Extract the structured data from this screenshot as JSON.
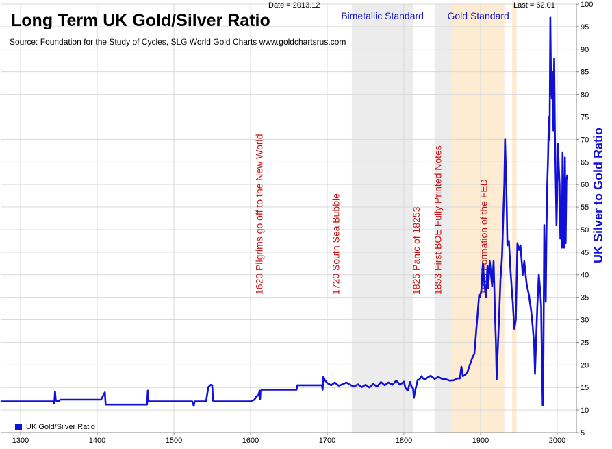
{
  "header": {
    "title": "Long Term UK Gold/Silver Ratio",
    "source": "Source: Foundation for the Study of Cycles, SLG    World Gold Charts www.goldchartsrus.com",
    "date_label": "Date = 2013.12",
    "last_label": "Last = 62.01"
  },
  "colors": {
    "line": "#1010d8",
    "annotation": "#cc1111",
    "region_gray": "#ececec",
    "region_orange": "#fdebd2",
    "grid": "#d9d9d9"
  },
  "chart_data": {
    "type": "line",
    "title": "Long Term UK Gold/Silver Ratio",
    "ylabel": "UK Silver to Gold Ratio",
    "xlabel": "",
    "xlim": [
      1275,
      2025
    ],
    "ylim": [
      5,
      100
    ],
    "x_ticks": [
      1300,
      1400,
      1500,
      1600,
      1700,
      1800,
      1900,
      2000
    ],
    "y_ticks": [
      5,
      10,
      15,
      20,
      25,
      30,
      35,
      40,
      45,
      50,
      55,
      60,
      65,
      70,
      75,
      80,
      85,
      90,
      95,
      100
    ],
    "grid": true,
    "legend_position": "bottom-left",
    "series": [
      {
        "name": "UK Gold/Silver Ratio",
        "points": [
          [
            1275,
            11.9
          ],
          [
            1343,
            11.9
          ],
          [
            1344,
            11.4
          ],
          [
            1345,
            14.1
          ],
          [
            1346,
            12.1
          ],
          [
            1349,
            11.9
          ],
          [
            1352,
            12.3
          ],
          [
            1405,
            12.3
          ],
          [
            1410,
            13.9
          ],
          [
            1411,
            11.2
          ],
          [
            1412,
            11.2
          ],
          [
            1460,
            11.2
          ],
          [
            1465,
            11.2
          ],
          [
            1466,
            14.3
          ],
          [
            1467,
            11.9
          ],
          [
            1524,
            11.9
          ],
          [
            1526,
            10.9
          ],
          [
            1527,
            11.9
          ],
          [
            1542,
            11.9
          ],
          [
            1545,
            15.1
          ],
          [
            1548,
            15.6
          ],
          [
            1550,
            15.5
          ],
          [
            1551,
            12.1
          ],
          [
            1552,
            11.9
          ],
          [
            1600,
            11.9
          ],
          [
            1605,
            12.3
          ],
          [
            1608,
            13.1
          ],
          [
            1610,
            13.2
          ],
          [
            1612,
            14.3
          ],
          [
            1612.5,
            12.4
          ],
          [
            1613,
            14.2
          ],
          [
            1615,
            14.5
          ],
          [
            1660,
            14.5
          ],
          [
            1661,
            15.5
          ],
          [
            1693,
            15.5
          ],
          [
            1694,
            14.5
          ],
          [
            1695,
            17.4
          ],
          [
            1697,
            16.6
          ],
          [
            1700,
            16.0
          ],
          [
            1705,
            15.5
          ],
          [
            1710,
            16.1
          ],
          [
            1715,
            15.4
          ],
          [
            1720,
            15.7
          ],
          [
            1725,
            16.1
          ],
          [
            1730,
            15.6
          ],
          [
            1735,
            15.2
          ],
          [
            1740,
            15.7
          ],
          [
            1745,
            15.1
          ],
          [
            1750,
            15.6
          ],
          [
            1755,
            15.0
          ],
          [
            1760,
            15.8
          ],
          [
            1765,
            15.2
          ],
          [
            1770,
            16.2
          ],
          [
            1775,
            15.5
          ],
          [
            1780,
            16.1
          ],
          [
            1785,
            15.6
          ],
          [
            1790,
            16.5
          ],
          [
            1795,
            15.6
          ],
          [
            1800,
            16.3
          ],
          [
            1802,
            14.9
          ],
          [
            1805,
            14.3
          ],
          [
            1808,
            16.2
          ],
          [
            1810,
            15.2
          ],
          [
            1812,
            14.8
          ],
          [
            1813,
            12.7
          ],
          [
            1815,
            14.5
          ],
          [
            1818,
            16.7
          ],
          [
            1820,
            16.7
          ],
          [
            1823,
            17.5
          ],
          [
            1825,
            17.0
          ],
          [
            1828,
            16.8
          ],
          [
            1830,
            17.1
          ],
          [
            1835,
            17.6
          ],
          [
            1840,
            16.9
          ],
          [
            1845,
            17.3
          ],
          [
            1850,
            16.9
          ],
          [
            1855,
            16.8
          ],
          [
            1860,
            16.5
          ],
          [
            1865,
            16.6
          ],
          [
            1870,
            17.0
          ],
          [
            1873,
            17.0
          ],
          [
            1875,
            19.6
          ],
          [
            1877,
            17.5
          ],
          [
            1880,
            17.8
          ],
          [
            1883,
            18.5
          ],
          [
            1886,
            20.0
          ],
          [
            1889,
            21.5
          ],
          [
            1892,
            22.5
          ],
          [
            1895,
            29.0
          ],
          [
            1897,
            33.0
          ],
          [
            1898,
            35.5
          ],
          [
            1899,
            35.0
          ],
          [
            1901,
            36.5
          ],
          [
            1903,
            42.5
          ],
          [
            1905,
            38.0
          ],
          [
            1907,
            35.0
          ],
          [
            1909,
            42.0
          ],
          [
            1910,
            37.0
          ],
          [
            1912,
            43.0
          ],
          [
            1915,
            37.5
          ],
          [
            1917,
            43.0
          ],
          [
            1919,
            30.0
          ],
          [
            1920,
            25.0
          ],
          [
            1921,
            16.8
          ],
          [
            1922,
            21.5
          ],
          [
            1924,
            30.0
          ],
          [
            1926,
            39.0
          ],
          [
            1928,
            44.0
          ],
          [
            1930,
            55.0
          ],
          [
            1931,
            60.0
          ],
          [
            1932,
            70.0
          ],
          [
            1933,
            63.0
          ],
          [
            1934,
            56.0
          ],
          [
            1935,
            46.5
          ],
          [
            1937,
            47.5
          ],
          [
            1939,
            41.0
          ],
          [
            1941,
            36.0
          ],
          [
            1942,
            34.0
          ],
          [
            1944,
            28.0
          ],
          [
            1946,
            30.0
          ],
          [
            1948,
            47.0
          ],
          [
            1950,
            45.5
          ],
          [
            1952,
            46.5
          ],
          [
            1955,
            40.0
          ],
          [
            1957,
            43.0
          ],
          [
            1960,
            38.0
          ],
          [
            1963,
            35.5
          ],
          [
            1966,
            32.0
          ],
          [
            1968,
            28.5
          ],
          [
            1970,
            24.0
          ],
          [
            1971,
            18.0
          ],
          [
            1972,
            23.0
          ],
          [
            1974,
            33.0
          ],
          [
            1976,
            40.0
          ],
          [
            1978,
            36.0
          ],
          [
            1979,
            33.0
          ],
          [
            1980,
            20.0
          ],
          [
            1980.5,
            16.0
          ],
          [
            1981,
            11.0
          ],
          [
            1982,
            22.0
          ],
          [
            1983,
            51.0
          ],
          [
            1984,
            42.0
          ],
          [
            1985,
            34.0
          ],
          [
            1986,
            50.0
          ],
          [
            1987,
            60.0
          ],
          [
            1988,
            66.0
          ],
          [
            1989,
            75.0
          ],
          [
            1990,
            70.0
          ],
          [
            1991,
            97.0
          ],
          [
            1992,
            82.0
          ],
          [
            1993,
            79.0
          ],
          [
            1994,
            85.0
          ],
          [
            1995,
            72.0
          ],
          [
            1996,
            88.0
          ],
          [
            1997,
            71.0
          ],
          [
            1998,
            61.0
          ],
          [
            1999,
            51.0
          ],
          [
            2000,
            58.0
          ],
          [
            2001,
            69.0
          ],
          [
            2002,
            64.0
          ],
          [
            2003,
            60.0
          ],
          [
            2004,
            48.0
          ],
          [
            2005,
            53.0
          ],
          [
            2006,
            46.0
          ],
          [
            2007,
            67.0
          ],
          [
            2008,
            54.0
          ],
          [
            2009,
            46.0
          ],
          [
            2010,
            66.0
          ],
          [
            2011,
            47.0
          ],
          [
            2012,
            61.0
          ],
          [
            2013,
            62.0
          ]
        ]
      }
    ],
    "regions": [
      {
        "label": "Bimetallic Standard",
        "from": 1732,
        "to": 1812,
        "color": "#ececec"
      },
      {
        "label": "",
        "from": 1840,
        "to": 1863,
        "color": "#ececec"
      },
      {
        "label": "Gold Standard",
        "from": 1863,
        "to": 1931,
        "color": "#fdebd2"
      },
      {
        "label": "",
        "from": 1941,
        "to": 1947,
        "color": "#fdebd2"
      }
    ],
    "annotations": [
      {
        "year": 1620,
        "text": "1620 Pilgrims go off to the New World"
      },
      {
        "year": 1720,
        "text": "1720 South Sea Bubble"
      },
      {
        "year": 1825,
        "text": "1825 Panic of 18253"
      },
      {
        "year": 1853,
        "text": "1853 First BOE Fully Printed Notes"
      },
      {
        "year": 1913,
        "text": "1913 Formation of the FED"
      }
    ]
  }
}
